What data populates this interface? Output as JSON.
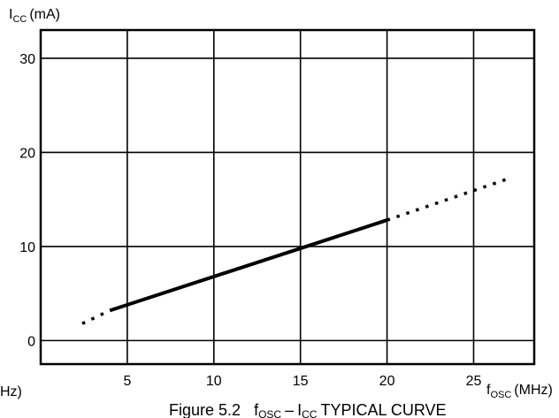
{
  "chart_data": {
    "type": "line",
    "title": "",
    "caption": "Figure 5.2   fOSC – ICC TYPICAL CURVE",
    "caption_parts": {
      "prefix": "Figure 5.2",
      "f": "f",
      "f_sub": "OSC",
      "dash": "–",
      "i": "I",
      "i_sub": "CC",
      "suffix": "TYPICAL CURVE"
    },
    "xlabel": {
      "main": "f",
      "sub": "OSC",
      "unit": "(MHz)"
    },
    "ylabel": {
      "main": "I",
      "sub": "CC",
      "unit": "(mA)"
    },
    "left_edge_fragment": "Hz)",
    "xlim": [
      0,
      28.5
    ],
    "ylim": [
      -2.5,
      33
    ],
    "x_ticks": [
      5,
      10,
      15,
      20,
      25
    ],
    "x_tick_labels": [
      "5",
      "10",
      "15",
      "20",
      "25"
    ],
    "y_ticks": [
      0,
      10,
      20,
      30
    ],
    "y_tick_labels": [
      "0",
      "10",
      "20",
      "30"
    ],
    "grid": true,
    "series": [
      {
        "style": "solid",
        "x": [
          4,
          20
        ],
        "y": [
          3.2,
          12.8
        ]
      },
      {
        "style": "dotted",
        "x": [
          2.4,
          4
        ],
        "y": [
          1.8,
          3.2
        ]
      },
      {
        "style": "dotted",
        "x": [
          20,
          27
        ],
        "y": [
          12.8,
          17.2
        ]
      }
    ]
  }
}
